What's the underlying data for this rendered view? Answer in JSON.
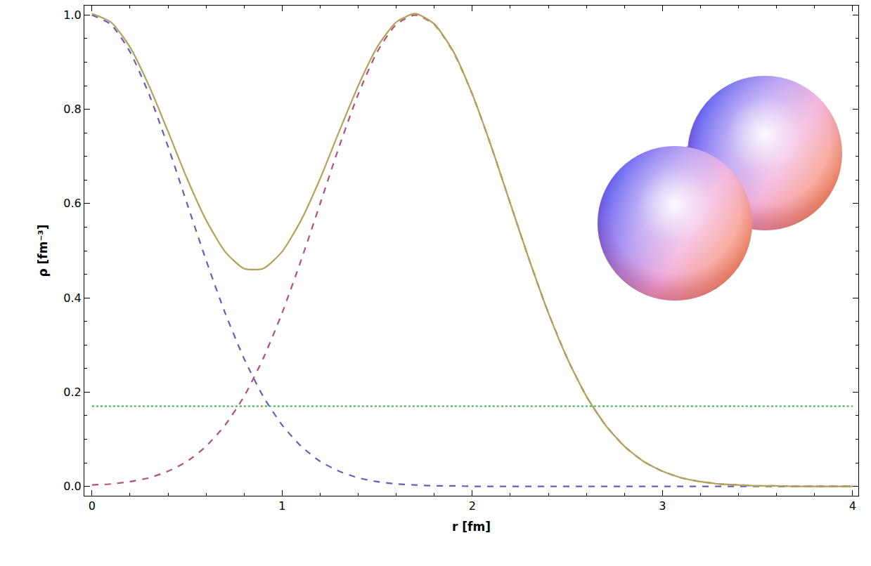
{
  "chart_data": {
    "type": "line",
    "x_label": "r [fm]",
    "y_label": "ρ [fm⁻³]",
    "x": [
      0,
      0.1,
      0.2,
      0.3,
      0.4,
      0.5,
      0.6,
      0.7,
      0.8,
      0.9,
      1.0,
      1.1,
      1.2,
      1.3,
      1.4,
      1.5,
      1.6,
      1.7,
      1.8,
      1.9,
      2.0,
      2.1,
      2.2,
      2.3,
      2.4,
      2.5,
      2.6,
      2.7,
      2.8,
      2.9,
      3.0,
      3.1,
      3.2,
      3.3,
      3.4,
      3.5,
      3.6,
      3.7,
      3.8,
      3.9,
      4.0
    ],
    "series": [
      {
        "color": "#5f62b8",
        "line_style": "dashed",
        "values": [
          1.0,
          0.98,
          0.922,
          0.832,
          0.721,
          0.6,
          0.48,
          0.368,
          0.271,
          0.191,
          0.13,
          0.085,
          0.053,
          0.032,
          0.018,
          0.01,
          0.005,
          0.003,
          0.001,
          0.001,
          0,
          0,
          0,
          0,
          0,
          0,
          0,
          0,
          0,
          0,
          0,
          0,
          0,
          0,
          0,
          0,
          0,
          0,
          0,
          0,
          0
        ]
      },
      {
        "color": "#b0507f",
        "line_style": "dashed",
        "values": [
          0.003,
          0.005,
          0.01,
          0.018,
          0.032,
          0.053,
          0.085,
          0.13,
          0.191,
          0.271,
          0.368,
          0.48,
          0.6,
          0.721,
          0.832,
          0.922,
          0.98,
          1.0,
          0.98,
          0.922,
          0.832,
          0.721,
          0.6,
          0.48,
          0.368,
          0.271,
          0.191,
          0.13,
          0.085,
          0.053,
          0.032,
          0.018,
          0.01,
          0.005,
          0.003,
          0.001,
          0.001,
          0,
          0,
          0,
          0
        ]
      },
      {
        "color": "#b3a05a",
        "line_style": "solid",
        "values": [
          1.003,
          0.985,
          0.932,
          0.85,
          0.753,
          0.653,
          0.565,
          0.498,
          0.462,
          0.462,
          0.498,
          0.565,
          0.653,
          0.753,
          0.85,
          0.932,
          0.985,
          1.003,
          0.981,
          0.923,
          0.832,
          0.721,
          0.6,
          0.48,
          0.368,
          0.271,
          0.191,
          0.13,
          0.085,
          0.053,
          0.032,
          0.018,
          0.01,
          0.005,
          0.003,
          0.001,
          0.001,
          0,
          0,
          0,
          0
        ]
      },
      {
        "color": "#3fae4a",
        "line_style": "dotted",
        "values": [
          0.17,
          0.17,
          0.17,
          0.17,
          0.17,
          0.17,
          0.17,
          0.17,
          0.17,
          0.17,
          0.17,
          0.17,
          0.17,
          0.17,
          0.17,
          0.17,
          0.17,
          0.17,
          0.17,
          0.17,
          0.17,
          0.17,
          0.17,
          0.17,
          0.17,
          0.17,
          0.17,
          0.17,
          0.17,
          0.17,
          0.17,
          0.17,
          0.17,
          0.17,
          0.17,
          0.17,
          0.17,
          0.17,
          0.17,
          0.17,
          0.17
        ]
      }
    ],
    "xlim": [
      -0.04,
      4.03
    ],
    "xticks": [
      0,
      1,
      2,
      3,
      4
    ],
    "ylim": [
      -0.02,
      1.02
    ],
    "yticks": [
      {
        "value": 0,
        "label": "0.0"
      },
      0.2,
      0.4,
      0.6,
      0.8,
      {
        "value": 1,
        "label": "1.0"
      }
    ],
    "grid": false
  }
}
